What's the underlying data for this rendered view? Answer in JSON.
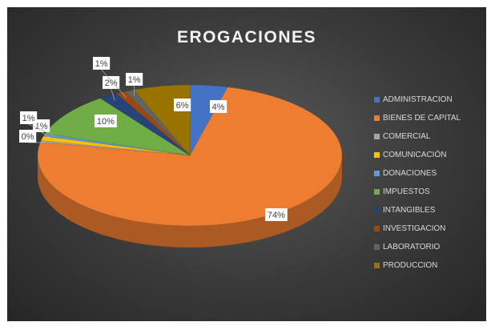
{
  "chart_data": {
    "type": "pie",
    "title": "EROGACIONES",
    "legend_position": "right",
    "slices": [
      {
        "label": "ADMINISTRACION",
        "value": 4,
        "data_label": "4%",
        "color": "#4472C4"
      },
      {
        "label": "BIENES DE CAPITAL",
        "value": 74,
        "data_label": "74%",
        "color": "#ED7D31"
      },
      {
        "label": "COMERCIAL",
        "value": 0.4,
        "data_label": "0%",
        "color": "#A5A5A5"
      },
      {
        "label": "COMUNICACIÓN",
        "value": 1,
        "data_label": "1%",
        "color": "#FFC000"
      },
      {
        "label": "DONACIONES",
        "value": 0.6,
        "data_label": "1%",
        "color": "#5B9BD5"
      },
      {
        "label": "IMPUESTOS",
        "value": 10,
        "data_label": "10%",
        "color": "#70AD47"
      },
      {
        "label": "INTANGIBLES",
        "value": 2,
        "data_label": "2%",
        "color": "#264478"
      },
      {
        "label": "INVESTIGACION",
        "value": 1,
        "data_label": "1%",
        "color": "#9E480E"
      },
      {
        "label": "LABORATORIO",
        "value": 1,
        "data_label": "1%",
        "color": "#636363"
      },
      {
        "label": "PRODUCCION",
        "value": 6,
        "data_label": "6%",
        "color": "#997300"
      }
    ]
  }
}
